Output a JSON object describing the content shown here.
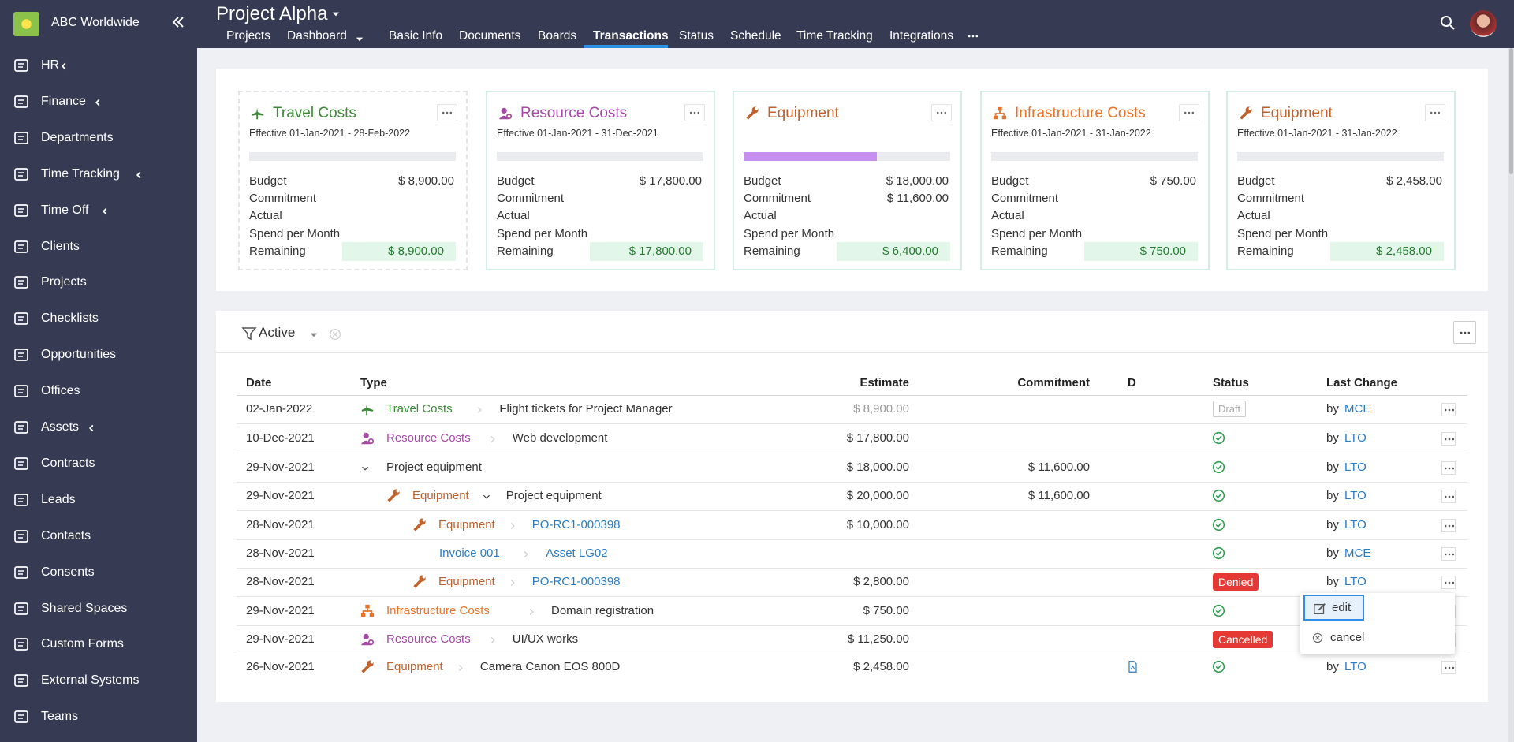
{
  "sidebar": {
    "organization": "ABC Worldwide",
    "items": [
      "HR",
      "Finance",
      "Departments",
      "Time Tracking",
      "Time Off",
      "Clients",
      "Projects",
      "Checklists",
      "Opportunities",
      "Offices",
      "Assets",
      "Contracts",
      "Leads",
      "Contacts",
      "Consents",
      "Shared Spaces",
      "Custom Forms",
      "External Systems",
      "Teams"
    ]
  },
  "header": {
    "project": "Project Alpha",
    "tabs": [
      "Projects",
      "Dashboard",
      "Basic Info",
      "Documents",
      "Boards",
      "Transactions",
      "Status",
      "Schedule",
      "Time Tracking",
      "Integrations"
    ]
  },
  "cards": {
    "labels": [
      "Budget",
      "Commitment",
      "Actual",
      "Spend per Month",
      "Remaining"
    ],
    "items": [
      {
        "title": "Travel Costs",
        "effective": "Effective 01-Jan-2021 - 28-Feb-2022",
        "values": [
          "$ 8,900.00",
          null,
          null,
          null,
          "$ 8,900.00"
        ]
      },
      {
        "title": "Resource Costs",
        "effective": "Effective 01-Jan-2021 - 31-Dec-2021",
        "values": [
          "$ 17,800.00",
          null,
          null,
          null,
          "$ 17,800.00"
        ]
      },
      {
        "title": "Equipment",
        "values": [
          "$ 18,000.00",
          "$ 11,600.00",
          null,
          null,
          "$ 6,400.00"
        ]
      },
      {
        "title": "Infrastructure Costs",
        "effective": "Effective 01-Jan-2021 - 31-Jan-2022",
        "values": [
          "$ 750.00",
          null,
          null,
          null,
          "$ 750.00"
        ]
      },
      {
        "title": "Equipment",
        "effective": "Effective 01-Jan-2021 - 31-Jan-2022",
        "values": [
          "$ 2,458.00",
          null,
          null,
          null,
          "$ 2,458.00"
        ]
      }
    ]
  },
  "filter": {
    "label": "Active"
  },
  "table": {
    "columns": [
      "Date",
      "Type",
      "Estimate",
      "Commitment",
      "D",
      "Status",
      "Last Change"
    ],
    "rows": [
      {
        "date": "02-Jan-2022",
        "type": "Travel Costs",
        "subject": "Flight tickets for Project Manager",
        "estimate": "$ 8,900.00",
        "status": "Draft",
        "by": "by",
        "user": "MCE"
      },
      {
        "date": "10-Dec-2021",
        "type": "Resource Costs",
        "subject": "Web development",
        "estimate": "$ 17,800.00",
        "by": "by",
        "user": "LTO"
      },
      {
        "date": "29-Nov-2021",
        "subject": "Project equipment",
        "estimate": "$ 18,000.00",
        "commitment": "$ 11,600.00",
        "by": "by",
        "user": "LTO"
      },
      {
        "date": "29-Nov-2021",
        "type": "Equipment",
        "subject": "Project equipment",
        "estimate": "$ 20,000.00",
        "commitment": "$ 11,600.00",
        "by": "by",
        "user": "LTO"
      },
      {
        "date": "28-Nov-2021",
        "type": "Equipment",
        "subject": "PO-RC1-000398",
        "estimate": "$ 10,000.00",
        "by": "by",
        "user": "LTO"
      },
      {
        "date": "28-Nov-2021",
        "type": "Invoice 001",
        "subject": "Asset LG02",
        "by": "by",
        "user": "MCE"
      },
      {
        "date": "28-Nov-2021",
        "type": "Equipment",
        "subject": "PO-RC1-000398",
        "estimate": "$ 2,800.00",
        "status": "Denied",
        "by": "by",
        "user": "LTO"
      },
      {
        "date": "29-Nov-2021",
        "type": "Infrastructure Costs",
        "subject": "Domain registration",
        "estimate": "$ 750.00"
      },
      {
        "date": "29-Nov-2021",
        "type": "Resource Costs",
        "subject": "UI/UX works",
        "estimate": "$ 11,250.00",
        "status": "Cancelled"
      },
      {
        "date": "26-Nov-2021",
        "type": "Equipment",
        "subject": "Camera Canon EOS 800D",
        "estimate": "$ 2,458.00",
        "by": "by",
        "user": "LTO"
      }
    ]
  },
  "context_menu": {
    "items": [
      "edit",
      "cancel"
    ]
  }
}
